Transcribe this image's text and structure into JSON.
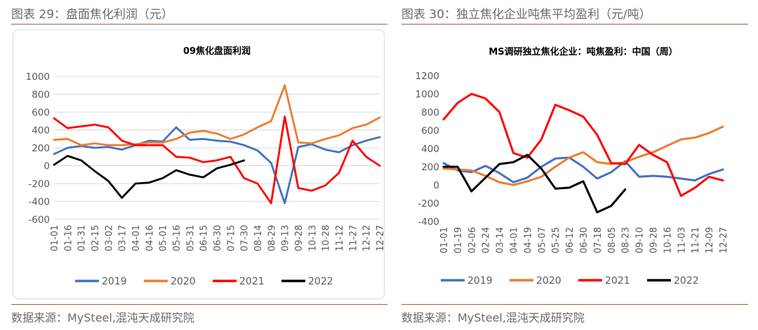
{
  "left_figure_caption": "图表 29：盘面焦化利润（元）",
  "right_figure_caption": "图表 30：独立焦化企业吨焦平均盈利（元/吨）",
  "left_source": "数据来源：MySteel,混沌天成研究院",
  "right_source": "数据来源：MySteel,混沌天成研究院",
  "colors": {
    "2019": "#4472c4",
    "2020": "#ed7d31",
    "2021": "#ff0000",
    "2022": "#000000"
  },
  "chart_data": [
    {
      "type": "line",
      "title": "09焦化盘面利润",
      "ylim": [
        -600,
        1000
      ],
      "yticks": [
        1000,
        800,
        600,
        400,
        200,
        0,
        -200,
        -400,
        -600
      ],
      "grid": true,
      "legend_position": "bottom",
      "x": [
        "01-01",
        "01-16",
        "01-31",
        "02-15",
        "03-02",
        "03-17",
        "04-01",
        "04-16",
        "05-01",
        "05-16",
        "05-31",
        "06-15",
        "06-30",
        "07-15",
        "07-30",
        "08-14",
        "08-29",
        "09-13",
        "09-28",
        "10-13",
        "10-28",
        "11-12",
        "11-27",
        "12-12",
        "12-27"
      ],
      "series": [
        {
          "name": "2019",
          "values": [
            130,
            200,
            220,
            200,
            210,
            180,
            230,
            280,
            270,
            430,
            290,
            300,
            280,
            270,
            230,
            170,
            30,
            -420,
            210,
            240,
            180,
            150,
            230,
            280,
            320
          ]
        },
        {
          "name": "2020",
          "values": [
            290,
            300,
            230,
            250,
            230,
            230,
            240,
            260,
            260,
            300,
            370,
            390,
            360,
            300,
            350,
            430,
            500,
            900,
            260,
            250,
            300,
            340,
            420,
            460,
            540
          ]
        },
        {
          "name": "2021",
          "values": [
            530,
            420,
            440,
            460,
            430,
            280,
            230,
            230,
            230,
            100,
            90,
            40,
            60,
            100,
            -140,
            -200,
            -420,
            550,
            -250,
            -280,
            -220,
            -80,
            280,
            100,
            0
          ]
        },
        {
          "name": "2022",
          "values": [
            10,
            110,
            60,
            -60,
            -170,
            -360,
            -200,
            -190,
            -140,
            -50,
            -100,
            -130,
            -30,
            10,
            60,
            null,
            null,
            null,
            null,
            null,
            null,
            null,
            null,
            null,
            null
          ]
        }
      ]
    },
    {
      "type": "line",
      "title": "MS调研独立焦化企业：吨焦盈利：中国（周）",
      "ylim": [
        -400,
        1200
      ],
      "yticks": [
        1200,
        1000,
        800,
        600,
        400,
        200,
        0,
        -200,
        -400
      ],
      "grid": false,
      "legend_position": "bottom",
      "x": [
        "01-01",
        "01-19",
        "02-06",
        "02-24",
        "03-14",
        "04-01",
        "04-19",
        "05-07",
        "05-25",
        "06-12",
        "06-30",
        "07-18",
        "08-05",
        "08-23",
        "09-10",
        "09-28",
        "10-16",
        "11-03",
        "11-21",
        "12-09",
        "12-27"
      ],
      "series": [
        {
          "name": "2019",
          "values": [
            240,
            160,
            140,
            210,
            130,
            30,
            80,
            200,
            290,
            300,
            200,
            70,
            140,
            260,
            90,
            100,
            90,
            70,
            50,
            120,
            170
          ]
        },
        {
          "name": "2020",
          "values": [
            180,
            170,
            160,
            100,
            30,
            0,
            40,
            90,
            200,
            300,
            360,
            250,
            230,
            250,
            310,
            360,
            430,
            500,
            520,
            570,
            640
          ]
        },
        {
          "name": "2021",
          "values": [
            720,
            900,
            1000,
            950,
            800,
            350,
            300,
            500,
            880,
            820,
            750,
            550,
            240,
            230,
            440,
            330,
            250,
            -120,
            -30,
            90,
            50
          ]
        },
        {
          "name": "2022",
          "values": [
            200,
            200,
            -70,
            80,
            230,
            250,
            330,
            180,
            -40,
            -30,
            40,
            -300,
            -230,
            -50,
            null,
            null,
            null,
            null,
            null,
            null,
            null
          ]
        }
      ]
    }
  ]
}
